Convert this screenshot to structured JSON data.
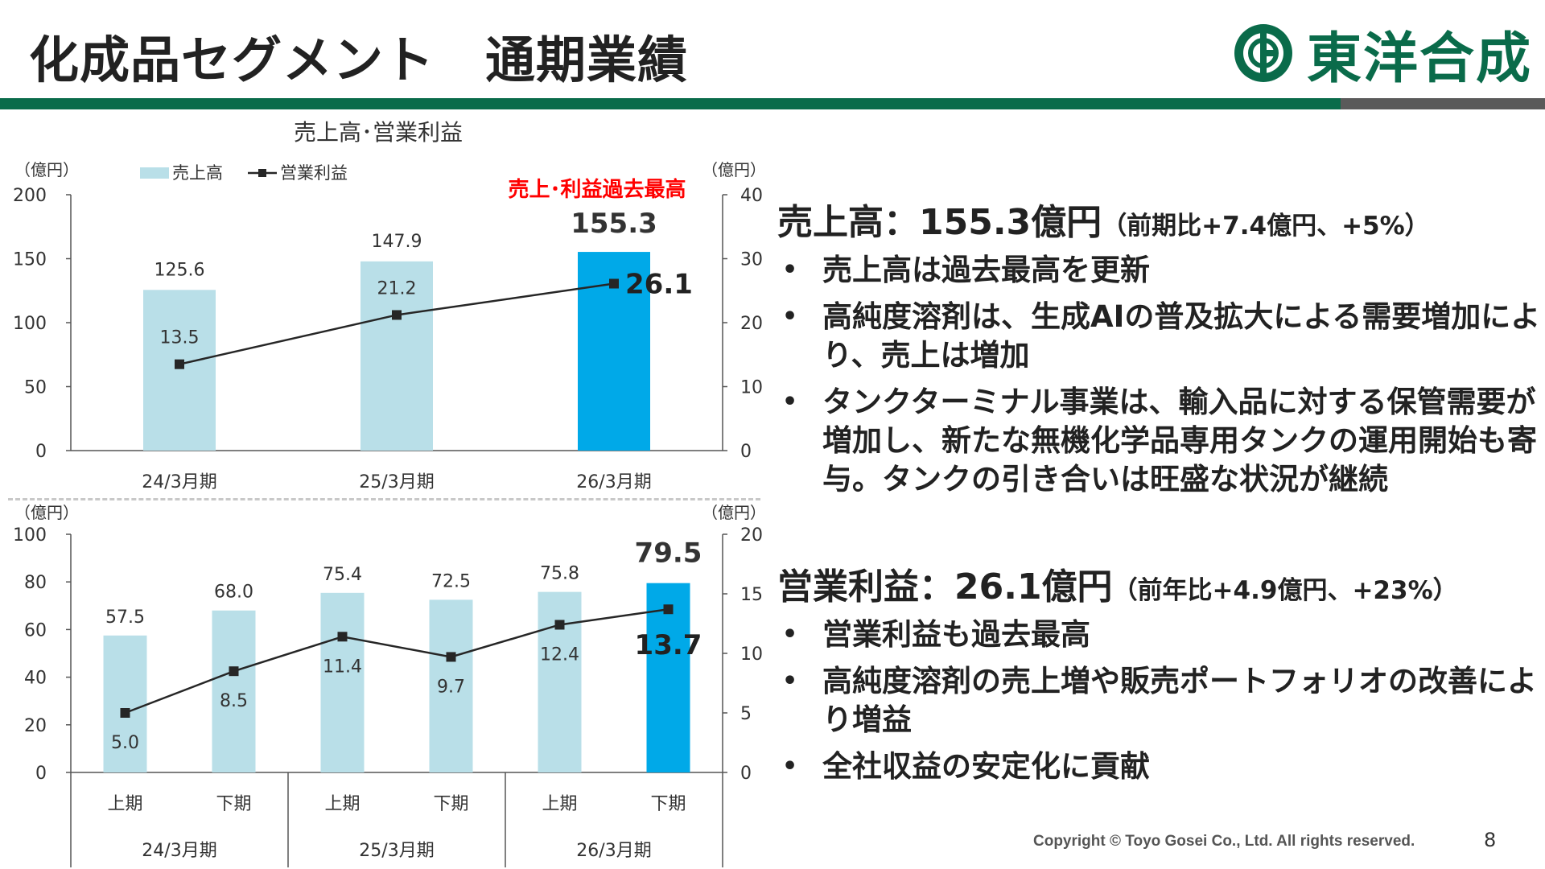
{
  "page": {
    "title": "化成品セグメント　通期業績",
    "logo_text": "東洋合成",
    "copyright": "Copyright © Toyo Gosei Co., Ltd. All rights reserved.",
    "page_number": "8"
  },
  "colors": {
    "brand_green": "#0a6b4a",
    "bar_light": "#b9dfe8",
    "bar_highlight": "#00a9e8",
    "line": "#262626",
    "record_red": "#ff0000"
  },
  "chart_data": [
    {
      "type": "bar",
      "title": "売上高･営業利益",
      "left_unit": "（億円）",
      "right_unit": "（億円）",
      "record_label": "売上･利益過去最高",
      "categories": [
        "24/3月期",
        "25/3月期",
        "26/3月期"
      ],
      "series": [
        {
          "name": "売上高",
          "type": "bar",
          "axis": "left",
          "values": [
            125.6,
            147.9,
            155.3
          ],
          "labels": [
            "125.6",
            "147.9",
            "155.3"
          ],
          "highlight_index": 2
        },
        {
          "name": "営業利益",
          "type": "line",
          "axis": "right",
          "values": [
            13.5,
            21.2,
            26.1
          ],
          "labels": [
            "13.5",
            "21.2",
            "26.1"
          ]
        }
      ],
      "ylim_left": [
        0,
        200
      ],
      "yticks_left": [
        "0",
        "50",
        "100",
        "150",
        "200"
      ],
      "ylim_right": [
        0,
        40
      ],
      "yticks_right": [
        "0",
        "10",
        "20",
        "30",
        "40"
      ],
      "legend": "top-left"
    },
    {
      "type": "bar",
      "left_unit": "（億円）",
      "right_unit": "（億円）",
      "categories": [
        "上期",
        "下期",
        "上期",
        "下期",
        "上期",
        "下期"
      ],
      "groups": [
        "24/3月期",
        "25/3月期",
        "26/3月期"
      ],
      "series": [
        {
          "name": "売上高",
          "type": "bar",
          "axis": "left",
          "values": [
            57.5,
            68.0,
            75.4,
            72.5,
            75.8,
            79.5
          ],
          "labels": [
            "57.5",
            "68.0",
            "75.4",
            "72.5",
            "75.8",
            "79.5"
          ],
          "highlight_index": 5
        },
        {
          "name": "営業利益",
          "type": "line",
          "axis": "right",
          "values": [
            5.0,
            8.5,
            11.4,
            9.7,
            12.4,
            13.7
          ],
          "labels": [
            "5.0",
            "8.5",
            "11.4",
            "9.7",
            "12.4",
            "13.7"
          ]
        }
      ],
      "ylim_left": [
        0,
        100
      ],
      "yticks_left": [
        "0",
        "20",
        "40",
        "60",
        "80",
        "100"
      ],
      "ylim_right": [
        0,
        20
      ],
      "yticks_right": [
        "0",
        "5",
        "10",
        "15",
        "20"
      ]
    }
  ],
  "summary": {
    "sales": {
      "headline": "売上高：155.3億円",
      "sub": "（前期比+7.4億円、+5%）",
      "bullets": [
        "売上高は過去最高を更新",
        "高純度溶剤は、生成AIの普及拡大による需要増加により、売上は増加",
        "タンクターミナル事業は、輸入品に対する保管需要が増加し、新たな無機化学品専用タンクの運用開始も寄与。タンクの引き合いは旺盛な状況が継続"
      ]
    },
    "profit": {
      "headline": "営業利益：26.1億円",
      "sub": "（前年比+4.9億円、+23%）",
      "bullets": [
        "営業利益も過去最高",
        "高純度溶剤の売上増や販売ポートフォリオの改善により増益",
        "全社収益の安定化に貢献"
      ]
    },
    "bullet_glyph": "•"
  }
}
